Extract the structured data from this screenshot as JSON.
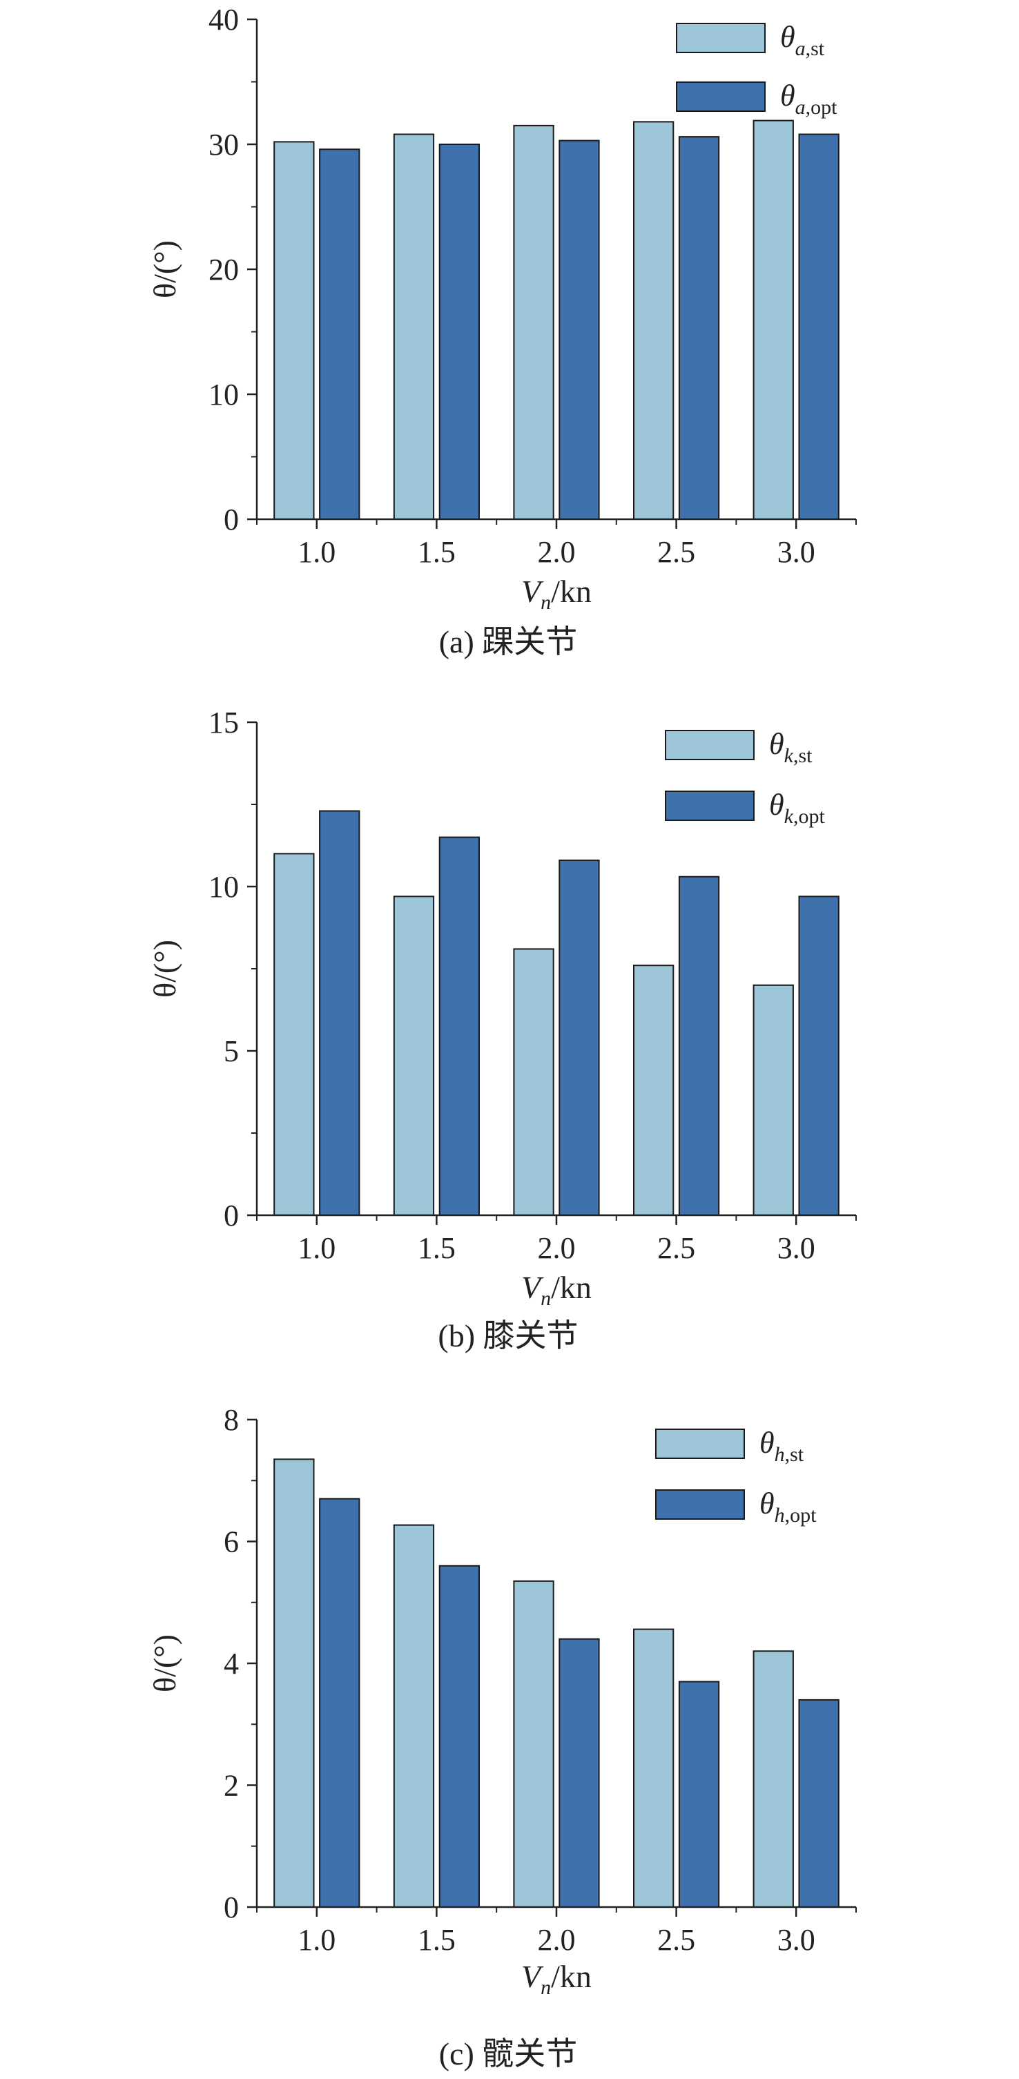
{
  "figure": {
    "colors": {
      "st": "#9dc7d8",
      "opt": "#3f72ad",
      "stroke": "#1a1a1a",
      "axis": "#222222"
    }
  },
  "chart_data": [
    {
      "type": "bar",
      "caption": "(a) 踝关节",
      "xlabel": {
        "main": "V",
        "sub": "n",
        "unit": "/kn"
      },
      "ylabel": "θ/(°)",
      "categories": [
        "1.0",
        "1.5",
        "2.0",
        "2.5",
        "3.0"
      ],
      "ylim": [
        0,
        40
      ],
      "yticks": [
        0,
        10,
        20,
        30,
        40
      ],
      "series": [
        {
          "name": "θa,st",
          "symbol": "θ",
          "sub": "a,st",
          "color": "#9dc7d8",
          "values": [
            30.2,
            30.8,
            31.5,
            31.8,
            31.9
          ]
        },
        {
          "name": "θa,opt",
          "symbol": "θ",
          "sub": "a,opt",
          "color": "#3f72ad",
          "values": [
            29.6,
            30.0,
            30.3,
            30.6,
            30.8
          ]
        }
      ],
      "legend": "top-right"
    },
    {
      "type": "bar",
      "caption": "(b) 膝关节",
      "xlabel": {
        "main": "V",
        "sub": "n",
        "unit": "/kn"
      },
      "ylabel": "θ/(°)",
      "categories": [
        "1.0",
        "1.5",
        "2.0",
        "2.5",
        "3.0"
      ],
      "ylim": [
        0,
        15
      ],
      "yticks": [
        0,
        5,
        10,
        15
      ],
      "series": [
        {
          "name": "θk,st",
          "symbol": "θ",
          "sub": "k,st",
          "color": "#9dc7d8",
          "values": [
            11.0,
            9.7,
            8.1,
            7.6,
            7.0
          ]
        },
        {
          "name": "θk,opt",
          "symbol": "θ",
          "sub": "k,opt",
          "color": "#3f72ad",
          "values": [
            12.3,
            11.5,
            10.8,
            10.3,
            9.7
          ]
        }
      ],
      "legend": "top-right"
    },
    {
      "type": "bar",
      "caption": "(c) 髋关节",
      "xlabel": {
        "main": "V",
        "sub": "n",
        "unit": "/kn"
      },
      "ylabel": "θ/(°)",
      "categories": [
        "1.0",
        "1.5",
        "2.0",
        "2.5",
        "3.0"
      ],
      "ylim": [
        0,
        8
      ],
      "yticks": [
        0,
        2,
        4,
        6,
        8
      ],
      "series": [
        {
          "name": "θh,st",
          "symbol": "θ",
          "sub": "h,st",
          "color": "#9dc7d8",
          "values": [
            7.35,
            6.27,
            5.35,
            4.56,
            4.2
          ]
        },
        {
          "name": "θh,opt",
          "symbol": "θ",
          "sub": "h,opt",
          "color": "#3f72ad",
          "values": [
            6.7,
            5.6,
            4.4,
            3.7,
            3.4
          ]
        }
      ],
      "legend": "top-right"
    }
  ]
}
